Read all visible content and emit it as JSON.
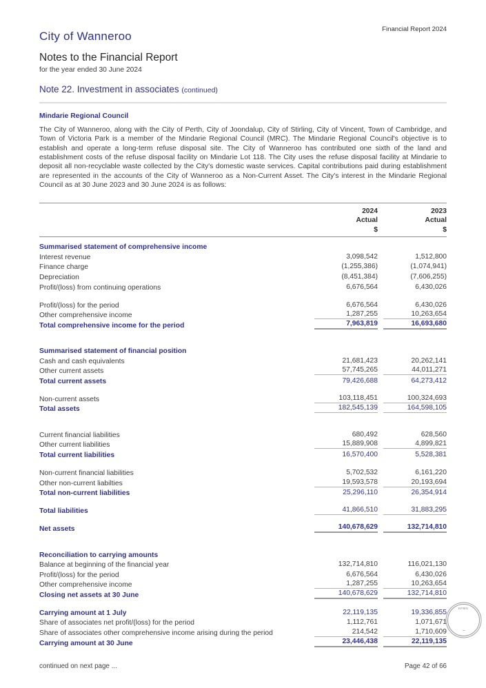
{
  "page": {
    "brand": "City of Wanneroo",
    "report_label": "Financial Report 2024",
    "title": "Notes to the Financial Report",
    "subtitle": "for the year ended 30 June 2024",
    "note_title": "Note 22. Investment in associates",
    "note_continued": "(continued)"
  },
  "intro": {
    "heading": "Mindarie Regional Council",
    "paragraph": "The City of Wanneroo, along with the City of Perth, City of Joondalup, City of Stirling, City of Vincent, Town of Cambridge, and Town of Victoria Park is a member of the Mindarie Regional Council (MRC). The Mindarie Regional Council's objective is to establish and operate a long-term refuse disposal site. The City of Wanneroo has contributed one sixth of the land and establishment costs of the refuse disposal facility on Mindarie Lot 118. The City uses the refuse disposal facility at Mindarie to deposit all non-recyclable waste collected by the City's domestic waste services. Capital contributions paid during establishment are represented in the accounts of the City of Wanneroo as a Non-Current Asset. The City's interest in the Mindarie Regional Council as at 30 June 2023 and 30 June 2024 is as follows:"
  },
  "table": {
    "columns": [
      {
        "year": "2024",
        "label": "Actual",
        "unit": "$"
      },
      {
        "year": "2023",
        "label": "Actual",
        "unit": "$"
      }
    ],
    "rows": [
      {
        "style": "section",
        "label": "Summarised statement of comprehensive income"
      },
      {
        "style": "item",
        "label": "Interest revenue",
        "v1": "3,098,542",
        "v2": "1,512,800"
      },
      {
        "style": "item",
        "label": "Finance charge",
        "v1": "(1,255,386)",
        "v2": "(1,074,941)"
      },
      {
        "style": "item",
        "label": "Depreciation",
        "v1": "(8,451,384)",
        "v2": "(7,606,255)"
      },
      {
        "style": "item",
        "label": "Profit/(loss) from continuing operations",
        "v1": "6,676,564",
        "v2": "6,430,026"
      },
      {
        "style": "spacer"
      },
      {
        "style": "item",
        "label": "Profit/(loss) for the period",
        "v1": "6,676,564",
        "v2": "6,430,026"
      },
      {
        "style": "item",
        "label": "Other comprehensive income",
        "v1": "1,287,255",
        "v2": "10,263,654",
        "border": "thin"
      },
      {
        "style": "total_bold",
        "label": "Total comprehensive income for the period",
        "v1": "7,963,819",
        "v2": "16,693,680",
        "border": "thick"
      },
      {
        "style": "spacer"
      },
      {
        "style": "spacer"
      },
      {
        "style": "section",
        "label": "Summarised statement of financial position"
      },
      {
        "style": "item",
        "label": "Cash and cash equivalents",
        "v1": "21,681,423",
        "v2": "20,262,141"
      },
      {
        "style": "item",
        "label": "Other current assets",
        "v1": "57,745,265",
        "v2": "44,011,271",
        "border": "thin"
      },
      {
        "style": "total",
        "label": "Total current assets",
        "v1": "79,426,688",
        "v2": "64,273,412"
      },
      {
        "style": "spacer"
      },
      {
        "style": "item",
        "label": "Non-current assets",
        "v1": "103,118,451",
        "v2": "100,324,693",
        "border": "thin"
      },
      {
        "style": "total",
        "label": "Total assets",
        "v1": "182,545,139",
        "v2": "164,598,105",
        "border": "thin"
      },
      {
        "style": "spacer"
      },
      {
        "style": "spacer"
      },
      {
        "style": "item",
        "label": "Current financial liabilities",
        "v1": "680,492",
        "v2": "628,560"
      },
      {
        "style": "item",
        "label": "Other current liabilities",
        "v1": "15,889,908",
        "v2": "4,899,821",
        "border": "thin"
      },
      {
        "style": "total",
        "label": "Total current liabilities",
        "v1": "16,570,400",
        "v2": "5,528,381"
      },
      {
        "style": "spacer"
      },
      {
        "style": "item",
        "label": "Non-current financial liabilities",
        "v1": "5,702,532",
        "v2": "6,161,220"
      },
      {
        "style": "item",
        "label": "Other non-current liabilties",
        "v1": "19,593,578",
        "v2": "20,193,694",
        "border": "thin"
      },
      {
        "style": "total",
        "label": "Total non-current liabilities",
        "v1": "25,296,110",
        "v2": "26,354,914"
      },
      {
        "style": "spacer"
      },
      {
        "style": "total",
        "label": "Total liabilities",
        "v1": "41,866,510",
        "v2": "31,883,295",
        "border": "thin"
      },
      {
        "style": "spacer"
      },
      {
        "style": "total_bold",
        "label": "Net assets",
        "v1": "140,678,629",
        "v2": "132,714,810",
        "border": "thick"
      },
      {
        "style": "spacer"
      },
      {
        "style": "spacer"
      },
      {
        "style": "section",
        "label": "Reconciliation to carrying amounts"
      },
      {
        "style": "item",
        "label": "Balance at beginning of the financial year",
        "v1": "132,714,810",
        "v2": "116,021,130"
      },
      {
        "style": "item",
        "label": "Profit/(loss) for the period",
        "v1": "6,676,564",
        "v2": "6,430,026"
      },
      {
        "style": "item",
        "label": "Other comprehensive income",
        "v1": "1,287,255",
        "v2": "10,263,654",
        "border": "thin"
      },
      {
        "style": "total",
        "label": "Closing net assets at 30 June",
        "v1": "140,678,629",
        "v2": "132,714,810",
        "border": "thick"
      },
      {
        "style": "spacer"
      },
      {
        "style": "total",
        "label": "Carrying amount at 1 July",
        "v1": "22,119,135",
        "v2": "19,336,855"
      },
      {
        "style": "item",
        "label": "Share of associates net profit/(loss) for the period",
        "v1": "1,112,761",
        "v2": "1,071,671"
      },
      {
        "style": "item",
        "label": "Share of associates other comprehensive income arising during the period",
        "v1": "214,542",
        "v2": "1,710,609",
        "border": "thin"
      },
      {
        "style": "total_bold",
        "label": "Carrying amount at 30 June",
        "v1": "23,446,438",
        "v2": "22,119,135",
        "border": "thick"
      }
    ]
  },
  "stamp": {
    "text": "KPMG"
  },
  "footer": {
    "left": "continued on next page ...",
    "right": "Page 42 of 66"
  },
  "colors": {
    "accent": "#2e3192",
    "body_text": "#3a3a3a",
    "thin_rule": "#b3b3b3",
    "thick_rule": "#9a9a9a"
  }
}
